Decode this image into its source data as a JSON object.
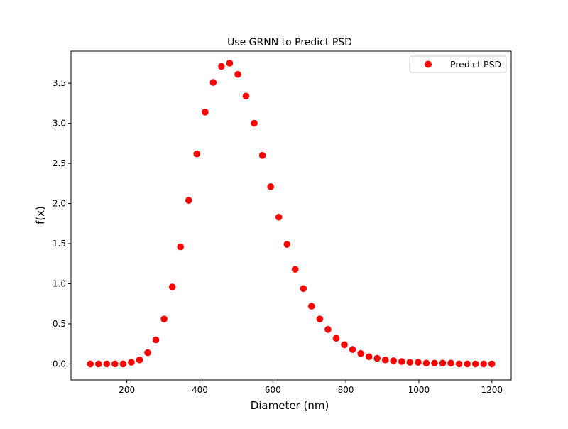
{
  "chart_data": {
    "type": "scatter",
    "title": "Use GRNN to Predict PSD",
    "xlabel": "Diameter (nm)",
    "ylabel": "f(x)",
    "xlim": [
      47,
      1253
    ],
    "ylim": [
      -0.2,
      3.9
    ],
    "xticks": [
      200,
      400,
      600,
      800,
      1000,
      1200
    ],
    "xtick_labels": [
      "200",
      "400",
      "600",
      "800",
      "1000",
      "1200"
    ],
    "yticks": [
      0.0,
      0.5,
      1.0,
      1.5,
      2.0,
      2.5,
      3.0,
      3.5
    ],
    "ytick_labels": [
      "0.0",
      "0.5",
      "1.0",
      "1.5",
      "2.0",
      "2.5",
      "3.0",
      "3.5"
    ],
    "grid": false,
    "legend_position": "top-right",
    "marker_color": "#ff0000",
    "series": [
      {
        "name": "Predict PSD",
        "x": [
          100,
          122.4,
          144.9,
          167.3,
          189.8,
          212.2,
          234.7,
          257.1,
          279.6,
          302,
          324.5,
          346.9,
          369.4,
          391.8,
          414.3,
          436.7,
          459.2,
          481.6,
          504.1,
          526.5,
          549,
          571.4,
          593.9,
          616.3,
          638.8,
          661.2,
          683.7,
          706.1,
          728.6,
          751,
          773.5,
          795.9,
          818.4,
          840.8,
          863.3,
          885.7,
          908.2,
          930.6,
          953.1,
          975.5,
          998,
          1020.4,
          1042.9,
          1065.3,
          1087.8,
          1110.2,
          1132.7,
          1155.1,
          1177.6,
          1200
        ],
        "y": [
          0.0,
          0.0,
          0.0,
          0.0,
          0.0,
          0.02,
          0.05,
          0.14,
          0.3,
          0.56,
          0.96,
          1.46,
          2.04,
          2.62,
          3.14,
          3.51,
          3.71,
          3.75,
          3.61,
          3.34,
          3.0,
          2.6,
          2.21,
          1.83,
          1.49,
          1.18,
          0.94,
          0.72,
          0.56,
          0.43,
          0.32,
          0.24,
          0.18,
          0.13,
          0.09,
          0.07,
          0.05,
          0.04,
          0.03,
          0.02,
          0.02,
          0.01,
          0.01,
          0.01,
          0.01,
          0.0,
          0.0,
          0.0,
          0.0,
          0.0
        ]
      }
    ]
  }
}
